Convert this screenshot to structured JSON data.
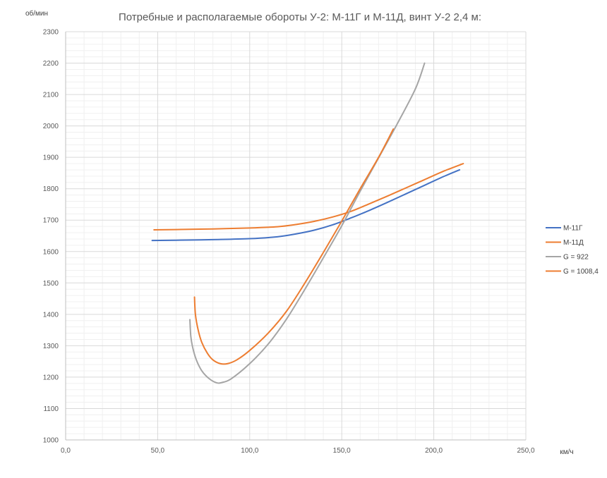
{
  "chart_data": {
    "type": "line",
    "title": "Потребные и располагаемые обороты У-2: М-11Г и М-11Д, винт У-2 2,4 м:",
    "xlabel": "км/ч",
    "ylabel": "об/мин",
    "xlim": [
      0,
      250
    ],
    "ylim": [
      1000,
      2300
    ],
    "x_major_step": 50,
    "x_minor_step": 10,
    "y_major_step": 100,
    "y_minor_step": 20,
    "x_tick_labels": [
      "0,0",
      "50,0",
      "100,0",
      "150,0",
      "200,0",
      "250,0"
    ],
    "y_tick_labels": [
      "1000",
      "1100",
      "1200",
      "1300",
      "1400",
      "1500",
      "1600",
      "1700",
      "1800",
      "1900",
      "2000",
      "2100",
      "2200",
      "2300"
    ],
    "grid": true,
    "legend_position": "right",
    "series": [
      {
        "name": "М-11Г",
        "color": "#4472C4",
        "points": [
          [
            47,
            1635
          ],
          [
            60,
            1636
          ],
          [
            80,
            1638
          ],
          [
            100,
            1641
          ],
          [
            115,
            1647
          ],
          [
            125,
            1656
          ],
          [
            135,
            1668
          ],
          [
            145,
            1685
          ],
          [
            155,
            1707
          ],
          [
            165,
            1731
          ],
          [
            175,
            1757
          ],
          [
            185,
            1784
          ],
          [
            195,
            1811
          ],
          [
            205,
            1838
          ],
          [
            214,
            1860
          ]
        ]
      },
      {
        "name": "М-11Д",
        "color": "#ED7D31",
        "points": [
          [
            48,
            1669
          ],
          [
            60,
            1670
          ],
          [
            80,
            1672
          ],
          [
            100,
            1675
          ],
          [
            115,
            1679
          ],
          [
            125,
            1686
          ],
          [
            135,
            1696
          ],
          [
            145,
            1710
          ],
          [
            155,
            1728
          ],
          [
            165,
            1752
          ],
          [
            175,
            1777
          ],
          [
            185,
            1803
          ],
          [
            195,
            1829
          ],
          [
            205,
            1855
          ],
          [
            216,
            1880
          ]
        ]
      },
      {
        "name": "G = 922",
        "color": "#A5A5A5",
        "points": [
          [
            67.5,
            1383
          ],
          [
            68,
            1330
          ],
          [
            69,
            1295
          ],
          [
            71,
            1255
          ],
          [
            74,
            1220
          ],
          [
            78,
            1195
          ],
          [
            82,
            1182
          ],
          [
            85,
            1183
          ],
          [
            90,
            1195
          ],
          [
            100,
            1243
          ],
          [
            110,
            1305
          ],
          [
            120,
            1385
          ],
          [
            130,
            1480
          ],
          [
            140,
            1580
          ],
          [
            150,
            1682
          ],
          [
            160,
            1792
          ],
          [
            170,
            1898
          ],
          [
            180,
            2005
          ],
          [
            190,
            2118
          ],
          [
            195,
            2200
          ]
        ]
      },
      {
        "name": "G = 1008,4",
        "color": "#ED7D31",
        "points": [
          [
            70,
            1455
          ],
          [
            70.5,
            1400
          ],
          [
            72,
            1350
          ],
          [
            74,
            1310
          ],
          [
            77,
            1276
          ],
          [
            80,
            1255
          ],
          [
            84,
            1243
          ],
          [
            88,
            1243
          ],
          [
            93,
            1255
          ],
          [
            100,
            1285
          ],
          [
            110,
            1340
          ],
          [
            120,
            1410
          ],
          [
            130,
            1500
          ],
          [
            140,
            1597
          ],
          [
            150,
            1697
          ],
          [
            160,
            1800
          ],
          [
            170,
            1900
          ],
          [
            178,
            1990
          ]
        ]
      }
    ]
  }
}
